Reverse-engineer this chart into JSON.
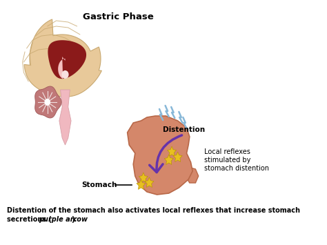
{
  "bg_color": "#ffffff",
  "title": "Gastric Phase",
  "title_fontsize": 9,
  "brain_color": "#e8c99a",
  "brain_inner_color": "#8b1a1a",
  "brain_inner2_color": "#f5c0c0",
  "brainstem_color": "#f0b8c0",
  "cerebellum_color": "#c07878",
  "cerebellum_center_color": "#ffffff",
  "stomach_color": "#d4876a",
  "stomach_edge_color": "#b86848",
  "purple_arrow_color": "#6633aa",
  "yellow_spark_color": "#e8c020",
  "blue_bolt_color": "#88b8d8",
  "caption_bold": "Distention of the stomach also activates local reflexes that increase stomach\nsecretions (",
  "caption_italic": "purple arrow",
  "caption_end": ").",
  "stomach_label": "Stomach",
  "distention_label": "Distention",
  "local_reflexes_text": "Local reflexes\nstimulated by\nstomach distention"
}
